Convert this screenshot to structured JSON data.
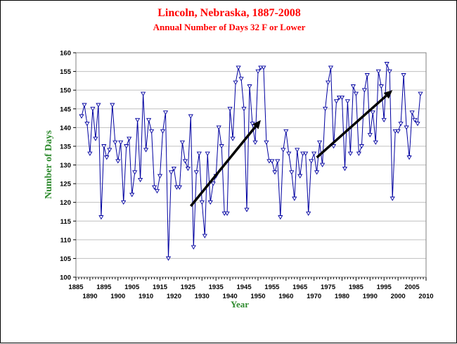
{
  "chart_data": {
    "type": "line",
    "title": "Lincoln, Nebraska, 1887-2008",
    "subtitle": "Annual Number of Days 32 F or Lower",
    "xlabel": "Year",
    "ylabel": "Number of Days",
    "xlim": [
      1885,
      2010
    ],
    "ylim": [
      100,
      160
    ],
    "x_ticks_upper": [
      "1885",
      "1895",
      "1905",
      "1915",
      "1925",
      "1935",
      "1945",
      "1955",
      "1965",
      "1975",
      "1985",
      "1995",
      "2005"
    ],
    "x_ticks_lower": [
      "1890",
      "1900",
      "1910",
      "1920",
      "1930",
      "1940",
      "1950",
      "1960",
      "1970",
      "1980",
      "1990",
      "2000",
      "2010"
    ],
    "y_ticks": [
      "100",
      "105",
      "110",
      "115",
      "120",
      "125",
      "130",
      "135",
      "140",
      "145",
      "150",
      "155",
      "160"
    ],
    "grid": true,
    "series": [
      {
        "color": "#0000a0",
        "marker": "open-down-triangle",
        "x": [
          1887,
          1888,
          1889,
          1890,
          1891,
          1892,
          1893,
          1894,
          1895,
          1896,
          1897,
          1898,
          1899,
          1900,
          1901,
          1902,
          1903,
          1904,
          1905,
          1906,
          1907,
          1908,
          1909,
          1910,
          1911,
          1912,
          1913,
          1914,
          1915,
          1916,
          1917,
          1918,
          1919,
          1920,
          1921,
          1922,
          1923,
          1924,
          1925,
          1926,
          1927,
          1928,
          1929,
          1930,
          1931,
          1932,
          1933,
          1934,
          1935,
          1936,
          1937,
          1938,
          1939,
          1940,
          1941,
          1942,
          1943,
          1944,
          1945,
          1946,
          1947,
          1948,
          1949,
          1950,
          1951,
          1952,
          1953,
          1954,
          1955,
          1956,
          1957,
          1958,
          1959,
          1960,
          1961,
          1962,
          1963,
          1964,
          1965,
          1966,
          1967,
          1968,
          1969,
          1970,
          1971,
          1972,
          1973,
          1974,
          1975,
          1976,
          1977,
          1978,
          1979,
          1980,
          1981,
          1982,
          1983,
          1984,
          1985,
          1986,
          1987,
          1988,
          1989,
          1990,
          1991,
          1992,
          1993,
          1994,
          1995,
          1996,
          1997,
          1998,
          1999,
          2000,
          2001,
          2002,
          2003,
          2004,
          2005,
          2006,
          2007,
          2008
        ],
        "values": [
          143,
          146,
          141,
          133,
          145,
          137,
          146,
          116,
          135,
          132,
          134,
          146,
          136,
          131,
          136,
          120,
          135,
          137,
          122,
          128,
          142,
          126,
          149,
          134,
          142,
          139,
          124,
          123,
          127,
          139,
          144,
          105,
          128,
          129,
          124,
          124,
          136,
          131,
          129,
          143,
          108,
          128,
          133,
          120,
          111,
          133,
          120,
          125,
          127,
          140,
          135,
          117,
          117,
          145,
          137,
          152,
          156,
          153,
          145,
          118,
          151,
          141,
          136,
          155,
          156,
          156,
          136,
          131,
          131,
          128,
          131,
          116,
          134,
          139,
          133,
          128,
          121,
          134,
          127,
          133,
          133,
          117,
          131,
          133,
          128,
          136,
          130,
          145,
          152,
          156,
          135,
          147,
          148,
          148,
          129,
          147,
          133,
          151,
          149,
          133,
          135,
          150,
          154,
          138,
          144,
          136,
          155,
          151,
          142,
          157,
          155,
          121,
          139,
          139,
          141,
          154,
          140,
          132,
          144,
          142,
          141,
          149
        ]
      }
    ],
    "annotations": [
      {
        "type": "arrow",
        "color": "#000000",
        "from": [
          1926,
          119
        ],
        "to": [
          1951,
          142
        ]
      },
      {
        "type": "arrow",
        "color": "#000000",
        "from": [
          1971,
          132
        ],
        "to": [
          1998,
          150
        ]
      }
    ]
  }
}
